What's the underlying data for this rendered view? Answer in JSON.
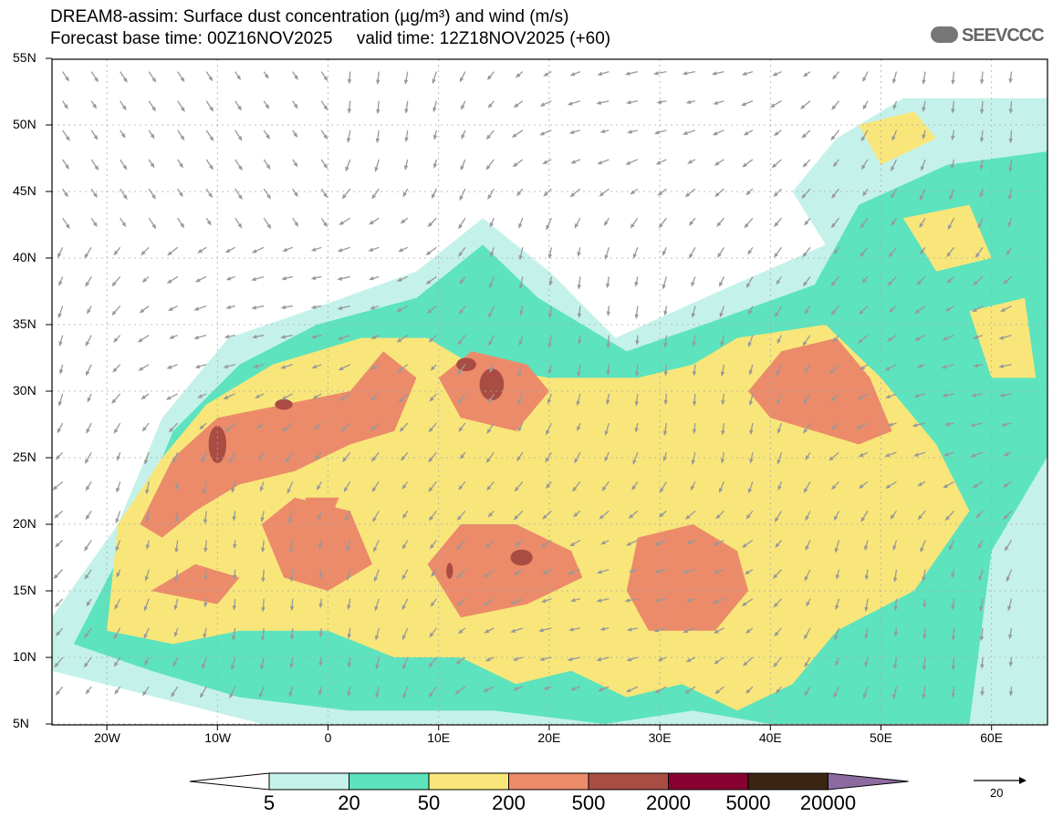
{
  "header": {
    "title": "DREAM8-assim: Surface dust concentration (µg/m³) and wind (m/s)",
    "subtitle": "Forecast base time: 00Z16NOV2025     valid time: 12Z18NOV2025 (+60)",
    "logo": "SEEVCCC"
  },
  "axes": {
    "lat_labels": [
      "55N",
      "50N",
      "45N",
      "40N",
      "35N",
      "30N",
      "25N",
      "20N",
      "15N",
      "10N",
      "5N"
    ],
    "lat_values": [
      55,
      50,
      45,
      40,
      35,
      30,
      25,
      20,
      15,
      10,
      5
    ],
    "lon_labels": [
      "20W",
      "10W",
      "0",
      "10E",
      "20E",
      "30E",
      "40E",
      "50E",
      "60E"
    ],
    "lon_values": [
      -20,
      -10,
      0,
      10,
      20,
      30,
      40,
      50,
      60
    ]
  },
  "colorbar": {
    "labels": [
      "5",
      "20",
      "50",
      "200",
      "500",
      "2000",
      "5000",
      "20000"
    ],
    "colors": [
      "#ffffff",
      "#c4f2ea",
      "#5de3bd",
      "#f8e67a",
      "#ec8b6a",
      "#a94c43",
      "#870030",
      "#3c2413",
      "#8d6ba0"
    ]
  },
  "wind_reference": {
    "label": "20"
  }
}
